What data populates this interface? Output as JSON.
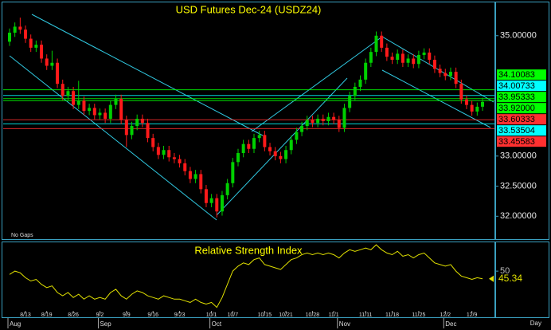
{
  "chart_data": [
    {
      "type": "candlestick",
      "title": "USD Futures Dec-24 (USDZ24)",
      "annotation": "No Gaps",
      "period": "Day",
      "categories": [
        null,
        null,
        null,
        "8/13",
        null,
        null,
        null,
        "8/19",
        null,
        null,
        null,
        null,
        "8/26",
        null,
        null,
        null,
        null,
        "9/2",
        null,
        null,
        null,
        null,
        "9/9",
        null,
        null,
        null,
        null,
        "9/16",
        null,
        null,
        null,
        null,
        "9/23",
        null,
        null,
        null,
        null,
        null,
        "10/1",
        null,
        null,
        null,
        "10/7",
        null,
        null,
        null,
        null,
        null,
        "10/15",
        null,
        null,
        null,
        "10/21",
        null,
        null,
        null,
        null,
        "10/28",
        null,
        null,
        null,
        "11/1",
        null,
        null,
        null,
        null,
        null,
        "11/11",
        null,
        null,
        null,
        null,
        "11/18",
        null,
        null,
        null,
        null,
        "11/25",
        null,
        null,
        null,
        null,
        "12/2",
        null,
        null,
        null,
        null,
        "12/9",
        null,
        null
      ],
      "months": [
        "Aug",
        null,
        null,
        null,
        null,
        null,
        null,
        null,
        null,
        null,
        null,
        null,
        null,
        null,
        null,
        null,
        null,
        "Sep",
        null,
        null,
        null,
        null,
        null,
        null,
        null,
        null,
        null,
        null,
        null,
        null,
        null,
        null,
        null,
        null,
        null,
        null,
        null,
        null,
        "Oct",
        null,
        null,
        null,
        null,
        null,
        null,
        null,
        null,
        null,
        null,
        null,
        null,
        null,
        null,
        null,
        null,
        null,
        null,
        null,
        null,
        null,
        null,
        null,
        "Nov",
        null,
        null,
        null,
        null,
        null,
        null,
        null,
        null,
        null,
        null,
        null,
        null,
        null,
        null,
        null,
        null,
        null,
        null,
        null,
        "Dec",
        null,
        null,
        null,
        null,
        null,
        null,
        null
      ],
      "open": [
        34.9,
        35.05,
        35.15,
        35.1,
        34.95,
        34.8,
        34.85,
        34.62,
        34.5,
        34.55,
        34.2,
        34.0,
        34.08,
        33.85,
        33.92,
        33.75,
        33.8,
        33.68,
        33.72,
        33.62,
        33.85,
        33.95,
        33.6,
        33.35,
        33.5,
        33.62,
        33.55,
        33.3,
        33.15,
        33.02,
        33.1,
        32.98,
        32.95,
        32.88,
        32.75,
        32.62,
        32.7,
        32.45,
        32.22,
        32.3,
        32.08,
        32.35,
        32.55,
        32.9,
        33.05,
        33.2,
        33.12,
        33.3,
        33.35,
        33.15,
        33.08,
        33.0,
        32.95,
        33.1,
        33.27,
        33.4,
        33.5,
        33.6,
        33.55,
        33.62,
        33.58,
        33.65,
        33.6,
        33.47,
        33.8,
        34.0,
        34.15,
        34.27,
        34.55,
        34.73,
        35.0,
        34.8,
        34.65,
        34.6,
        34.7,
        34.55,
        34.62,
        34.53,
        34.68,
        34.72,
        34.6,
        34.45,
        34.38,
        34.33,
        34.4,
        34.2,
        33.94,
        33.85,
        33.74,
        33.82
      ],
      "high": [
        35.12,
        35.22,
        35.3,
        35.17,
        35.02,
        34.92,
        34.92,
        34.69,
        34.75,
        34.62,
        34.27,
        34.15,
        34.15,
        34.25,
        33.99,
        33.87,
        33.87,
        33.79,
        33.79,
        33.92,
        34.02,
        34.02,
        33.67,
        33.57,
        33.69,
        33.69,
        33.62,
        33.37,
        33.22,
        33.17,
        33.17,
        33.05,
        33.02,
        32.95,
        32.82,
        32.77,
        32.77,
        32.52,
        32.37,
        32.37,
        32.42,
        32.62,
        32.97,
        33.12,
        33.27,
        33.27,
        33.37,
        33.42,
        33.42,
        33.22,
        33.15,
        33.07,
        33.17,
        33.34,
        33.47,
        33.57,
        33.67,
        33.67,
        33.69,
        33.69,
        33.72,
        33.72,
        33.67,
        33.87,
        34.07,
        34.22,
        34.34,
        34.62,
        34.8,
        35.07,
        35.07,
        34.87,
        34.72,
        34.77,
        34.77,
        34.69,
        34.69,
        34.75,
        34.79,
        34.79,
        34.67,
        34.52,
        34.45,
        34.47,
        34.47,
        34.27,
        34.01,
        33.92,
        33.89,
        33.97
      ],
      "low": [
        34.83,
        34.98,
        35.03,
        34.88,
        34.73,
        34.73,
        34.55,
        34.43,
        34.43,
        34.13,
        33.93,
        33.93,
        33.78,
        33.78,
        33.68,
        33.68,
        33.61,
        33.61,
        33.55,
        33.55,
        33.78,
        33.53,
        33.15,
        33.28,
        33.43,
        33.48,
        33.23,
        33.08,
        32.95,
        32.95,
        32.91,
        32.88,
        32.81,
        32.68,
        32.55,
        32.55,
        32.38,
        32.15,
        32.15,
        31.98,
        32.01,
        32.28,
        32.48,
        32.83,
        32.98,
        33.05,
        33.05,
        33.23,
        33.08,
        33.01,
        32.93,
        32.88,
        32.88,
        33.03,
        33.2,
        33.33,
        33.43,
        33.48,
        33.48,
        33.51,
        33.51,
        33.53,
        33.4,
        33.4,
        33.73,
        33.93,
        34.08,
        34.2,
        34.48,
        34.66,
        34.73,
        34.58,
        34.53,
        34.53,
        34.48,
        34.48,
        34.46,
        34.46,
        34.61,
        34.53,
        34.38,
        34.31,
        34.26,
        34.26,
        34.13,
        33.87,
        33.78,
        33.67,
        33.67,
        33.75
      ],
      "close": [
        35.05,
        35.15,
        35.1,
        34.95,
        34.8,
        34.85,
        34.62,
        34.5,
        34.55,
        34.2,
        34.0,
        34.08,
        33.85,
        33.92,
        33.75,
        33.8,
        33.68,
        33.72,
        33.62,
        33.85,
        33.95,
        33.6,
        33.35,
        33.5,
        33.62,
        33.55,
        33.3,
        33.15,
        33.02,
        33.1,
        32.98,
        32.95,
        32.88,
        32.75,
        32.62,
        32.7,
        32.45,
        32.22,
        32.3,
        32.08,
        32.35,
        32.55,
        32.9,
        33.05,
        33.2,
        33.12,
        33.3,
        33.35,
        33.15,
        33.08,
        33.0,
        32.95,
        33.1,
        33.27,
        33.4,
        33.5,
        33.6,
        33.55,
        33.62,
        33.58,
        33.65,
        33.6,
        33.47,
        33.8,
        34.0,
        34.15,
        34.27,
        34.55,
        34.73,
        35.0,
        34.8,
        34.65,
        34.6,
        34.7,
        34.55,
        34.62,
        34.53,
        34.68,
        34.72,
        34.6,
        34.45,
        34.38,
        34.33,
        34.4,
        34.2,
        33.94,
        33.85,
        33.74,
        33.82,
        33.9
      ],
      "up_color": "#00d000",
      "down_color": "#ff1a1a",
      "ylim": [
        31.62,
        35.54
      ],
      "yticks": [
        {
          "value": 32,
          "label": "32.00000"
        },
        {
          "value": 32.5,
          "label": "32.50000"
        },
        {
          "value": 33,
          "label": "33.00000"
        },
        {
          "value": 35,
          "label": "35.00000"
        }
      ],
      "levels": [
        {
          "value": 34.10083,
          "label": "34.10083",
          "color": "#00ff00"
        },
        {
          "value": 34.00733,
          "label": "34.00733",
          "color": "#00ffff"
        },
        {
          "value": 33.95333,
          "label": "33.95333",
          "color": "#00ff00"
        },
        {
          "value": 33.92,
          "label": "33.92000",
          "color": "#00ff00"
        },
        {
          "value": 33.60333,
          "label": "33.60333",
          "color": "#ff3030"
        },
        {
          "value": 33.53504,
          "label": "33.53504",
          "color": "#00ffff"
        },
        {
          "value": 33.45583,
          "label": "33.45583",
          "color": "#ff3030"
        }
      ]
    },
    {
      "type": "line",
      "title": "Relative Strength Index",
      "color": "#e0e000",
      "values": [
        48,
        50,
        49,
        46,
        44,
        45,
        42,
        40,
        41,
        37,
        35,
        37,
        34,
        36,
        33,
        35,
        33,
        34,
        33,
        37,
        39,
        35,
        33,
        36,
        38,
        37,
        35,
        34,
        33,
        35,
        34,
        33,
        33,
        32,
        31,
        33,
        31,
        30,
        31,
        28,
        34,
        42,
        50,
        53,
        55,
        54,
        57,
        58,
        54,
        53,
        52,
        51,
        54,
        57,
        58,
        60,
        61,
        60,
        61,
        60,
        61,
        60,
        58,
        61,
        63,
        62,
        63,
        64,
        63,
        66,
        63,
        61,
        60,
        62,
        59,
        60,
        58,
        60,
        61,
        58,
        55,
        54,
        53,
        54,
        50,
        47,
        46,
        45,
        46,
        45.34
      ],
      "ylim": [
        22,
        67
      ],
      "yticks": [
        50
      ]
    }
  ]
}
